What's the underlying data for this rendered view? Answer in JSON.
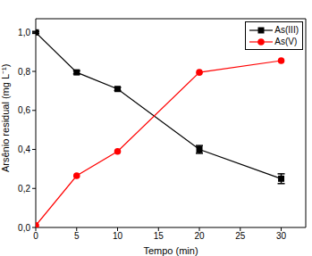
{
  "chart_data": {
    "type": "line",
    "x_label": "Tempo (min)",
    "y_label": "Arsênio residual (mg L⁻¹)",
    "x": [
      0,
      5,
      10,
      20,
      30
    ],
    "series": [
      {
        "name": "As(III)",
        "color": "#000000",
        "marker": "square",
        "values": [
          1.0,
          0.795,
          0.71,
          0.4,
          0.25
        ],
        "errors": [
          0.005,
          0.008,
          0.008,
          0.02,
          0.025
        ]
      },
      {
        "name": "As(V)",
        "color": "#ff0000",
        "marker": "circle",
        "values": [
          0.01,
          0.265,
          0.39,
          0.795,
          0.855
        ]
      }
    ],
    "xlim": [
      0,
      33
    ],
    "xticks": [
      0,
      5,
      10,
      15,
      20,
      25,
      30
    ],
    "ylim": [
      0,
      1.07
    ],
    "yticks": [
      {
        "value": 0,
        "label": "0,0"
      },
      {
        "value": 0.2,
        "label": "0,2"
      },
      {
        "value": 0.4,
        "label": "0,4"
      },
      {
        "value": 0.6,
        "label": "0,6"
      },
      {
        "value": 0.8,
        "label": "0,8"
      },
      {
        "value": 1.0,
        "label": "1,0"
      }
    ],
    "grid": false,
    "legend": "upper right"
  }
}
